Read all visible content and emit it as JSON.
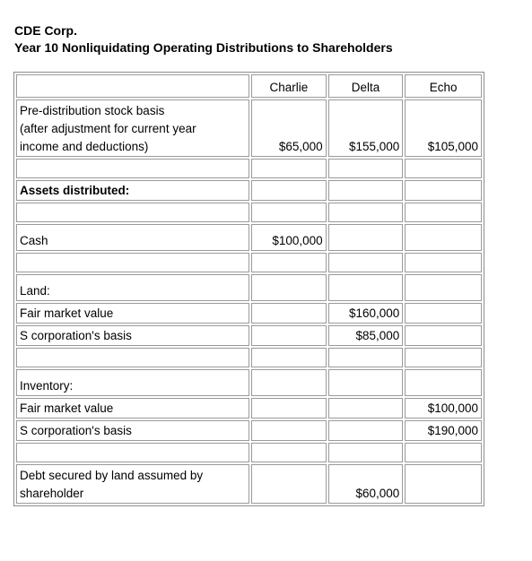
{
  "header": {
    "company": "CDE Corp.",
    "title": "Year 10 Nonliquidating Operating Distributions to Shareholders"
  },
  "table": {
    "columns": [
      "",
      "Charlie",
      "Delta",
      "Echo"
    ],
    "rows": {
      "basis": {
        "label": [
          "Pre-distribution stock basis",
          "(after adjustment for current year",
          "income and deductions)"
        ],
        "charlie": "$65,000",
        "delta": "$155,000",
        "echo": "$105,000"
      },
      "assets": {
        "label": "Assets distributed:"
      },
      "cash": {
        "label": "Cash",
        "charlie": "$100,000",
        "delta": "",
        "echo": ""
      },
      "land": {
        "label": "Land:"
      },
      "land_fmv": {
        "label": "Fair market value",
        "charlie": "",
        "delta": "$160,000",
        "echo": ""
      },
      "land_basis": {
        "label": "S corporation's basis",
        "charlie": "",
        "delta": "$85,000",
        "echo": ""
      },
      "inventory": {
        "label": "Inventory:"
      },
      "inv_fmv": {
        "label": "Fair market value",
        "charlie": "",
        "delta": "",
        "echo": "$100,000"
      },
      "inv_basis": {
        "label": "S corporation's basis",
        "charlie": "",
        "delta": "",
        "echo": "$190,000"
      },
      "debt": {
        "label": [
          "Debt secured by land assumed by",
          "shareholder"
        ],
        "charlie": "",
        "delta": "$60,000",
        "echo": ""
      }
    }
  }
}
